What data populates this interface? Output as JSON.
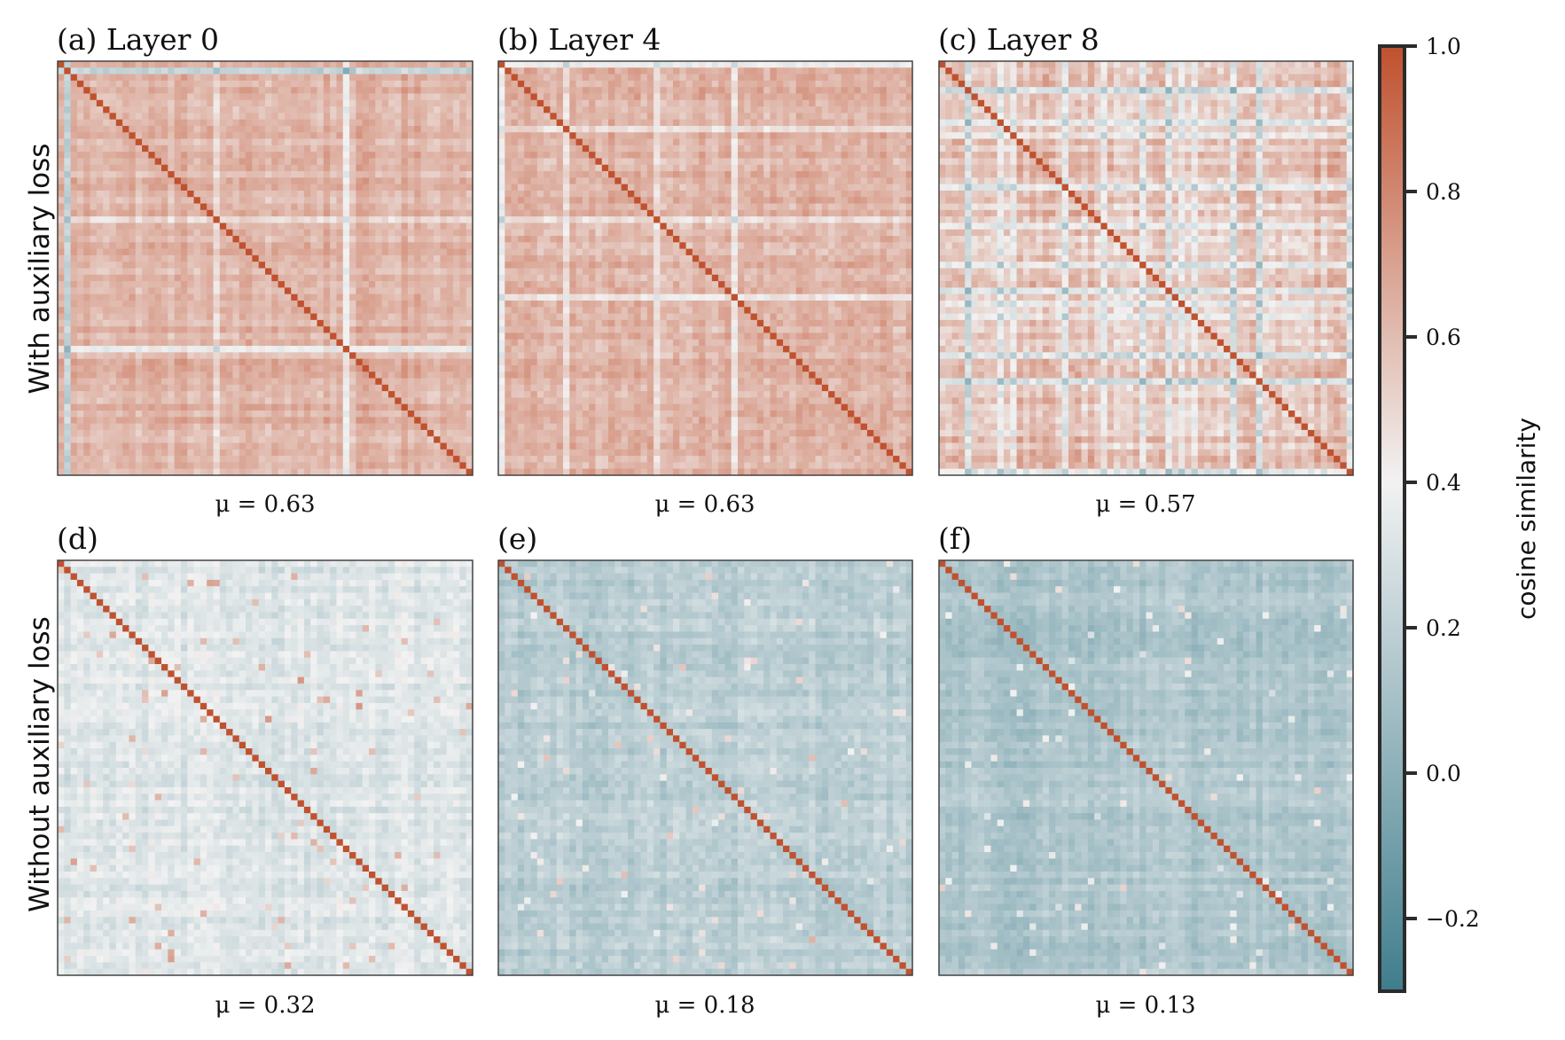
{
  "chart_data": {
    "type": "heatmap",
    "grid": "off",
    "matrix_size": 64,
    "colormap": {
      "low": "#3f7d8d",
      "mid": "#f2f2f2",
      "high": "#c0512f"
    },
    "row_labels": [
      "With auxiliary loss",
      "Without auxiliary loss"
    ],
    "panels": [
      {
        "title": "(a) Layer 0",
        "mean_label": "μ = 0.63",
        "mean": 0.63,
        "row": 0,
        "col": 0
      },
      {
        "title": "(b) Layer 4",
        "mean_label": "μ = 0.63",
        "mean": 0.63,
        "row": 0,
        "col": 1
      },
      {
        "title": "(c) Layer 8",
        "mean_label": "μ = 0.57",
        "mean": 0.57,
        "row": 0,
        "col": 2
      },
      {
        "title": "(d)",
        "mean_label": "μ = 0.32",
        "mean": 0.32,
        "row": 1,
        "col": 0
      },
      {
        "title": "(e)",
        "mean_label": "μ = 0.18",
        "mean": 0.18,
        "row": 1,
        "col": 1
      },
      {
        "title": "(f)",
        "mean_label": "μ = 0.13",
        "mean": 0.13,
        "row": 1,
        "col": 2
      }
    ],
    "colorbar": {
      "label": "cosine similarity",
      "range": [
        -0.3,
        1.0
      ],
      "ticks": [
        1.0,
        0.8,
        0.6,
        0.4,
        0.2,
        0.0,
        -0.2
      ],
      "tick_labels": [
        "1.0",
        "0.8",
        "0.6",
        "0.4",
        "0.2",
        "0.0",
        "−0.2"
      ]
    }
  }
}
